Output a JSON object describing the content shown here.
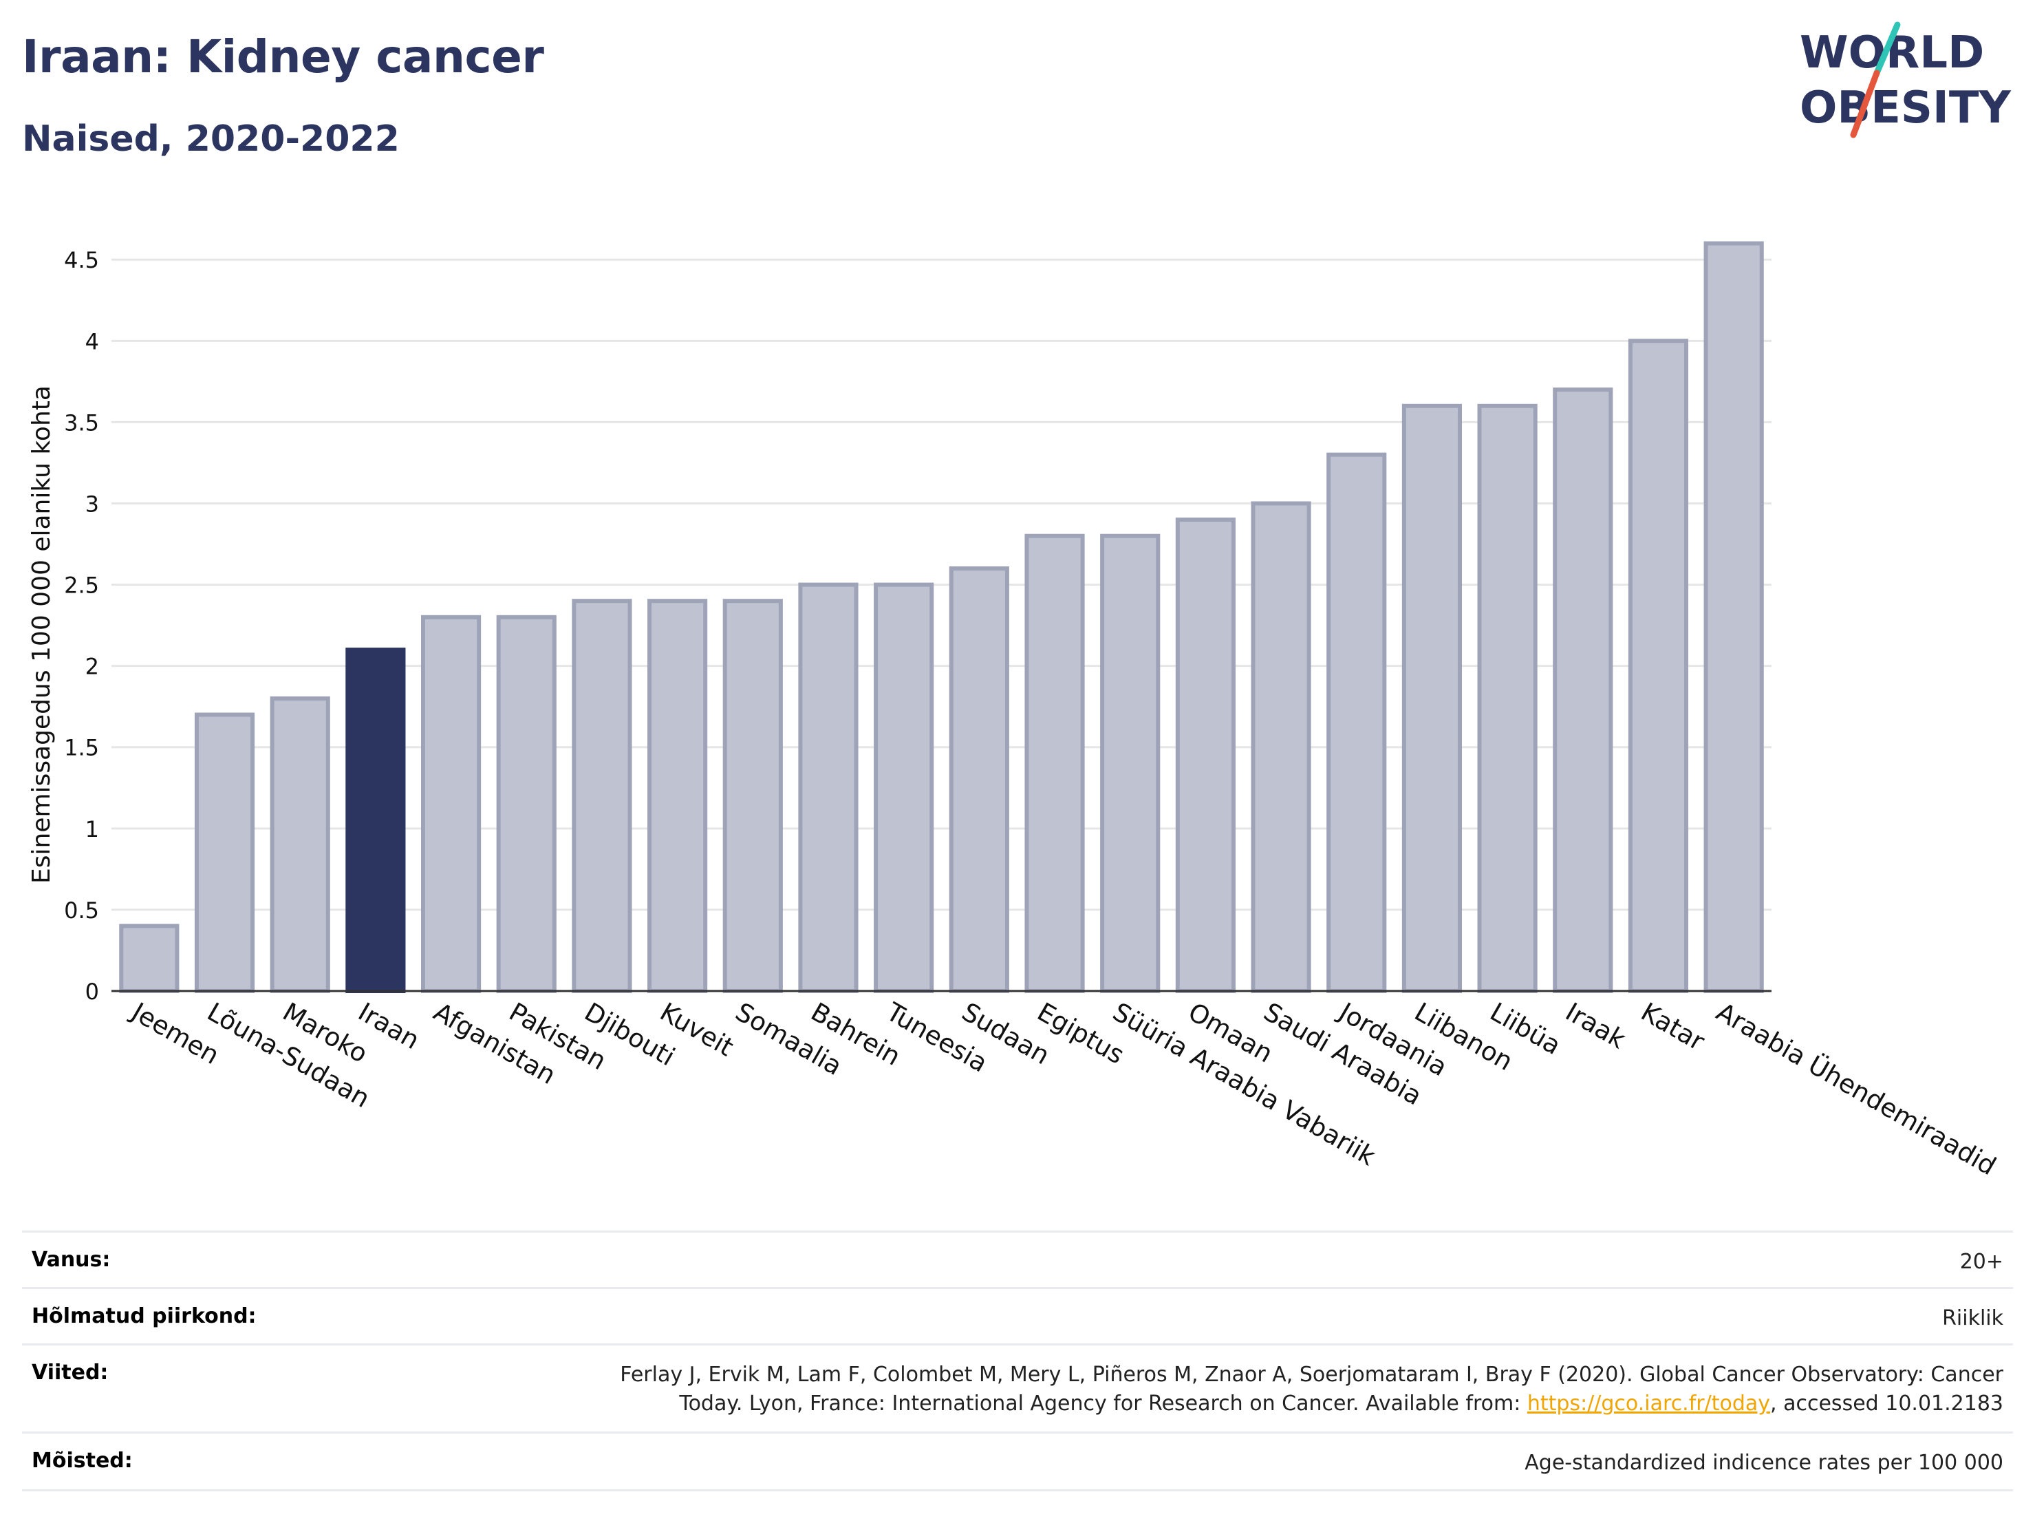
{
  "header": {
    "title": "Iraan: Kidney cancer",
    "subtitle": "Naised, 2020-2022"
  },
  "logo": {
    "line1": "WORLD",
    "line2": "OBESITY",
    "colors": {
      "text": "#2b3560",
      "slash_teal": "#2ec4b6",
      "slash_red": "#e4573d"
    }
  },
  "chart_data": {
    "type": "bar",
    "title": "",
    "xlabel": "",
    "ylabel": "Esinemissagedus 100 000 elaniku kohta",
    "ylim": [
      0,
      4.7
    ],
    "yticks": [
      0,
      0.5,
      1,
      1.5,
      2,
      2.5,
      3,
      3.5,
      4,
      4.5
    ],
    "ytick_labels": [
      "0",
      "0.5",
      "1",
      "1.5",
      "2",
      "2.5",
      "3",
      "3.5",
      "4",
      "4.5"
    ],
    "grid": true,
    "highlight": "Iraan",
    "colors": {
      "bar": "#bfc3d1",
      "bar_edge": "#9ea3b8",
      "highlight": "#2b3560",
      "grid": "#e6e6e6",
      "axis": "#333333"
    },
    "categories": [
      "Jeemen",
      "Lõuna-Sudaan",
      "Maroko",
      "Iraan",
      "Afganistan",
      "Pakistan",
      "Djibouti",
      "Kuveit",
      "Somaalia",
      "Bahrein",
      "Tuneesia",
      "Sudaan",
      "Egiptus",
      "Süüria Araabia Vabariik",
      "Omaan",
      "Saudi Araabia",
      "Jordaania",
      "Liibanon",
      "Liibüa",
      "Iraak",
      "Katar",
      "Araabia Ühendemiraadid"
    ],
    "values": [
      0.4,
      1.7,
      1.8,
      2.1,
      2.3,
      2.3,
      2.4,
      2.4,
      2.4,
      2.5,
      2.5,
      2.6,
      2.8,
      2.8,
      2.9,
      3.0,
      3.3,
      3.6,
      3.6,
      3.7,
      4.0,
      4.6
    ]
  },
  "meta": {
    "rows": [
      {
        "label": "Vanus:",
        "value": "20+"
      },
      {
        "label": "Hõlmatud piirkond:",
        "value": "Riiklik"
      },
      {
        "label": "Viited:",
        "value_line1": "Ferlay J, Ervik M, Lam F, Colombet M, Mery L, Piñeros M, Znaor A, Soerjomataram I, Bray F (2020). Global Cancer Observatory: Cancer",
        "value_line2_pre": "Today. Lyon, France: International Agency for Research on Cancer. Available from: ",
        "link": "https://gco.iarc.fr/today",
        "value_line2_post": ", accessed 10.01.2183"
      },
      {
        "label": "Mõisted:",
        "value": "Age-standardized indicence rates per 100 000"
      }
    ]
  }
}
